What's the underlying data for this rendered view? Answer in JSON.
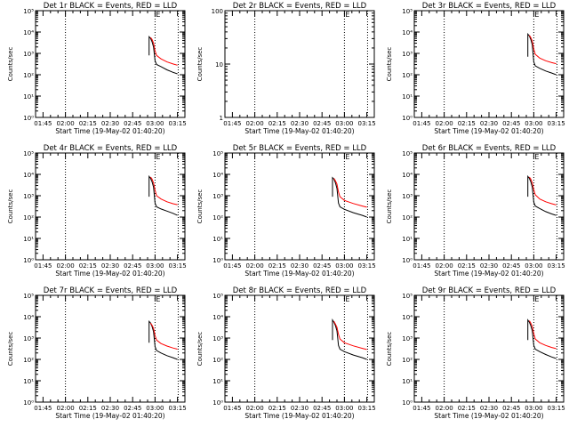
{
  "chart_data": {
    "type": "line",
    "layout_grid": "3x3",
    "xlabel": "Start Time (19-May-02 01:40:20)",
    "ylabel": "Counts/sec",
    "x_ticks": [
      "01:45",
      "02:00",
      "02:15",
      "02:30",
      "02:45",
      "03:00",
      "03:15"
    ],
    "x_tick_minutes": [
      105,
      120,
      135,
      150,
      165,
      180,
      195
    ],
    "xlim_minutes": [
      100,
      200
    ],
    "vlines_minutes": [
      120,
      180,
      195.5
    ],
    "marker_label": "E",
    "colors": {
      "events": "#000000",
      "lld": "#ff0000",
      "axes": "#000000"
    },
    "panels": [
      {
        "title": "Det 1r BLACK = Events, RED = LLD",
        "ylog": true,
        "ylim": [
          1,
          100000
        ],
        "y_ticks": [
          "10⁰",
          "10¹",
          "10²",
          "10³",
          "10⁴",
          "10⁵"
        ],
        "series": [
          {
            "name": "Events",
            "color": "#000000",
            "x": [
              176,
              176,
              177,
              178,
              179,
              180,
              181,
              184,
              188,
              192,
              195
            ],
            "y": [
              800,
              6000,
              5000,
              3500,
              2000,
              450,
              300,
              240,
              170,
              130,
              110
            ]
          },
          {
            "name": "LLD",
            "color": "#ff0000",
            "x": [
              177,
              178,
              179,
              180,
              181,
              184,
              188,
              192,
              195
            ],
            "y": [
              5500,
              4500,
              3000,
              1300,
              800,
              550,
              400,
              320,
              280
            ]
          }
        ]
      },
      {
        "title": "Det 2r BLACK = Events, RED = LLD",
        "ylog": true,
        "ylim": [
          1,
          100
        ],
        "y_ticks": [
          "1",
          "10",
          "100"
        ],
        "series": []
      },
      {
        "title": "Det 3r BLACK = Events, RED = LLD",
        "ylog": true,
        "ylim": [
          1,
          100000
        ],
        "y_ticks": [
          "10⁰",
          "10¹",
          "10²",
          "10³",
          "10⁴",
          "10⁵"
        ],
        "series": [
          {
            "name": "Events",
            "color": "#000000",
            "x": [
              176,
              176,
              177,
              178,
              179,
              180,
              181,
              184,
              188,
              192,
              195
            ],
            "y": [
              700,
              8000,
              6500,
              4500,
              2500,
              400,
              260,
              200,
              150,
              120,
              100
            ]
          },
          {
            "name": "LLD",
            "color": "#ff0000",
            "x": [
              177,
              178,
              179,
              180,
              181,
              184,
              188,
              192,
              195
            ],
            "y": [
              7000,
              5500,
              3800,
              1600,
              900,
              600,
              450,
              370,
              330
            ]
          }
        ]
      },
      {
        "title": "Det 4r BLACK = Events, RED = LLD",
        "ylog": true,
        "ylim": [
          1,
          100000
        ],
        "y_ticks": [
          "10⁰",
          "10¹",
          "10²",
          "10³",
          "10⁴",
          "10⁵"
        ],
        "series": [
          {
            "name": "Events",
            "color": "#000000",
            "x": [
              176,
              176,
              177,
              178,
              179,
              180,
              181,
              184,
              188,
              192,
              195
            ],
            "y": [
              900,
              8000,
              6500,
              4500,
              2500,
              450,
              300,
              240,
              190,
              150,
              120
            ]
          },
          {
            "name": "LLD",
            "color": "#ff0000",
            "x": [
              177,
              178,
              179,
              180,
              181,
              184,
              188,
              192,
              195
            ],
            "y": [
              7500,
              6000,
              4000,
              1800,
              1000,
              700,
              520,
              420,
              380
            ]
          }
        ]
      },
      {
        "title": "Det 5r BLACK = Events, RED = LLD",
        "ylog": true,
        "ylim": [
          1,
          100000
        ],
        "y_ticks": [
          "10⁰",
          "10¹",
          "10²",
          "10³",
          "10⁴",
          "10⁵"
        ],
        "series": [
          {
            "name": "Events",
            "color": "#000000",
            "x": [
              172,
              172,
              173,
              174,
              175,
              176,
              177,
              180,
              186,
              192,
              195
            ],
            "y": [
              900,
              7000,
              6000,
              4000,
              2200,
              450,
              300,
              230,
              160,
              120,
              100
            ]
          },
          {
            "name": "LLD",
            "color": "#ff0000",
            "x": [
              173,
              174,
              175,
              176,
              177,
              180,
              186,
              192,
              195
            ],
            "y": [
              6500,
              5000,
              3500,
              1500,
              900,
              600,
              430,
              330,
              290
            ]
          }
        ]
      },
      {
        "title": "Det 6r BLACK = Events, RED = LLD",
        "ylog": true,
        "ylim": [
          1,
          100000
        ],
        "y_ticks": [
          "10⁰",
          "10¹",
          "10²",
          "10³",
          "10⁴",
          "10⁵"
        ],
        "series": [
          {
            "name": "Events",
            "color": "#000000",
            "x": [
              176,
              176,
              177,
              178,
              179,
              180,
              181,
              184,
              188,
              192,
              195
            ],
            "y": [
              900,
              8000,
              6500,
              4500,
              2500,
              500,
              330,
              250,
              180,
              140,
              120
            ]
          },
          {
            "name": "LLD",
            "color": "#ff0000",
            "x": [
              177,
              178,
              179,
              180,
              181,
              184,
              188,
              192,
              195
            ],
            "y": [
              7500,
              6000,
              4000,
              1900,
              1100,
              700,
              520,
              420,
              370
            ]
          }
        ]
      },
      {
        "title": "Det 7r BLACK = Events, RED = LLD",
        "ylog": true,
        "ylim": [
          1,
          100000
        ],
        "y_ticks": [
          "10⁰",
          "10¹",
          "10²",
          "10³",
          "10⁴",
          "10⁵"
        ],
        "series": [
          {
            "name": "Events",
            "color": "#000000",
            "x": [
              176,
              176,
              177,
              178,
              179,
              180,
              181,
              184,
              188,
              192,
              195
            ],
            "y": [
              600,
              6000,
              5000,
              3500,
              2000,
              400,
              260,
              200,
              150,
              120,
              100
            ]
          },
          {
            "name": "LLD",
            "color": "#ff0000",
            "x": [
              177,
              178,
              179,
              180,
              181,
              184,
              188,
              192,
              195
            ],
            "y": [
              5000,
              4000,
              2800,
              1300,
              800,
              550,
              420,
              340,
              300
            ]
          }
        ]
      },
      {
        "title": "Det 8r BLACK = Events, RED = LLD",
        "ylog": true,
        "ylim": [
          1,
          100000
        ],
        "y_ticks": [
          "10⁰",
          "10¹",
          "10²",
          "10³",
          "10⁴",
          "10⁵"
        ],
        "series": [
          {
            "name": "Events",
            "color": "#000000",
            "x": [
              172,
              172,
              173,
              174,
              175,
              176,
              177,
              180,
              186,
              192,
              195
            ],
            "y": [
              800,
              7000,
              5500,
              3800,
              2200,
              450,
              300,
              230,
              160,
              120,
              100
            ]
          },
          {
            "name": "LLD",
            "color": "#ff0000",
            "x": [
              173,
              174,
              175,
              176,
              177,
              180,
              186,
              192,
              195
            ],
            "y": [
              6000,
              4500,
              3200,
              1500,
              900,
              600,
              430,
              330,
              290
            ]
          }
        ]
      },
      {
        "title": "Det 9r BLACK = Events, RED = LLD",
        "ylog": true,
        "ylim": [
          1,
          100000
        ],
        "y_ticks": [
          "10⁰",
          "10¹",
          "10²",
          "10³",
          "10⁴",
          "10⁵"
        ],
        "series": [
          {
            "name": "Events",
            "color": "#000000",
            "x": [
              176,
              176,
              177,
              178,
              179,
              180,
              181,
              184,
              188,
              192,
              195
            ],
            "y": [
              800,
              7000,
              5500,
              3800,
              2200,
              450,
              300,
              230,
              170,
              130,
              110
            ]
          },
          {
            "name": "LLD",
            "color": "#ff0000",
            "x": [
              177,
              178,
              179,
              180,
              181,
              184,
              188,
              192,
              195
            ],
            "y": [
              6500,
              5000,
              3500,
              1600,
              900,
              600,
              450,
              360,
              320
            ]
          }
        ]
      }
    ]
  }
}
